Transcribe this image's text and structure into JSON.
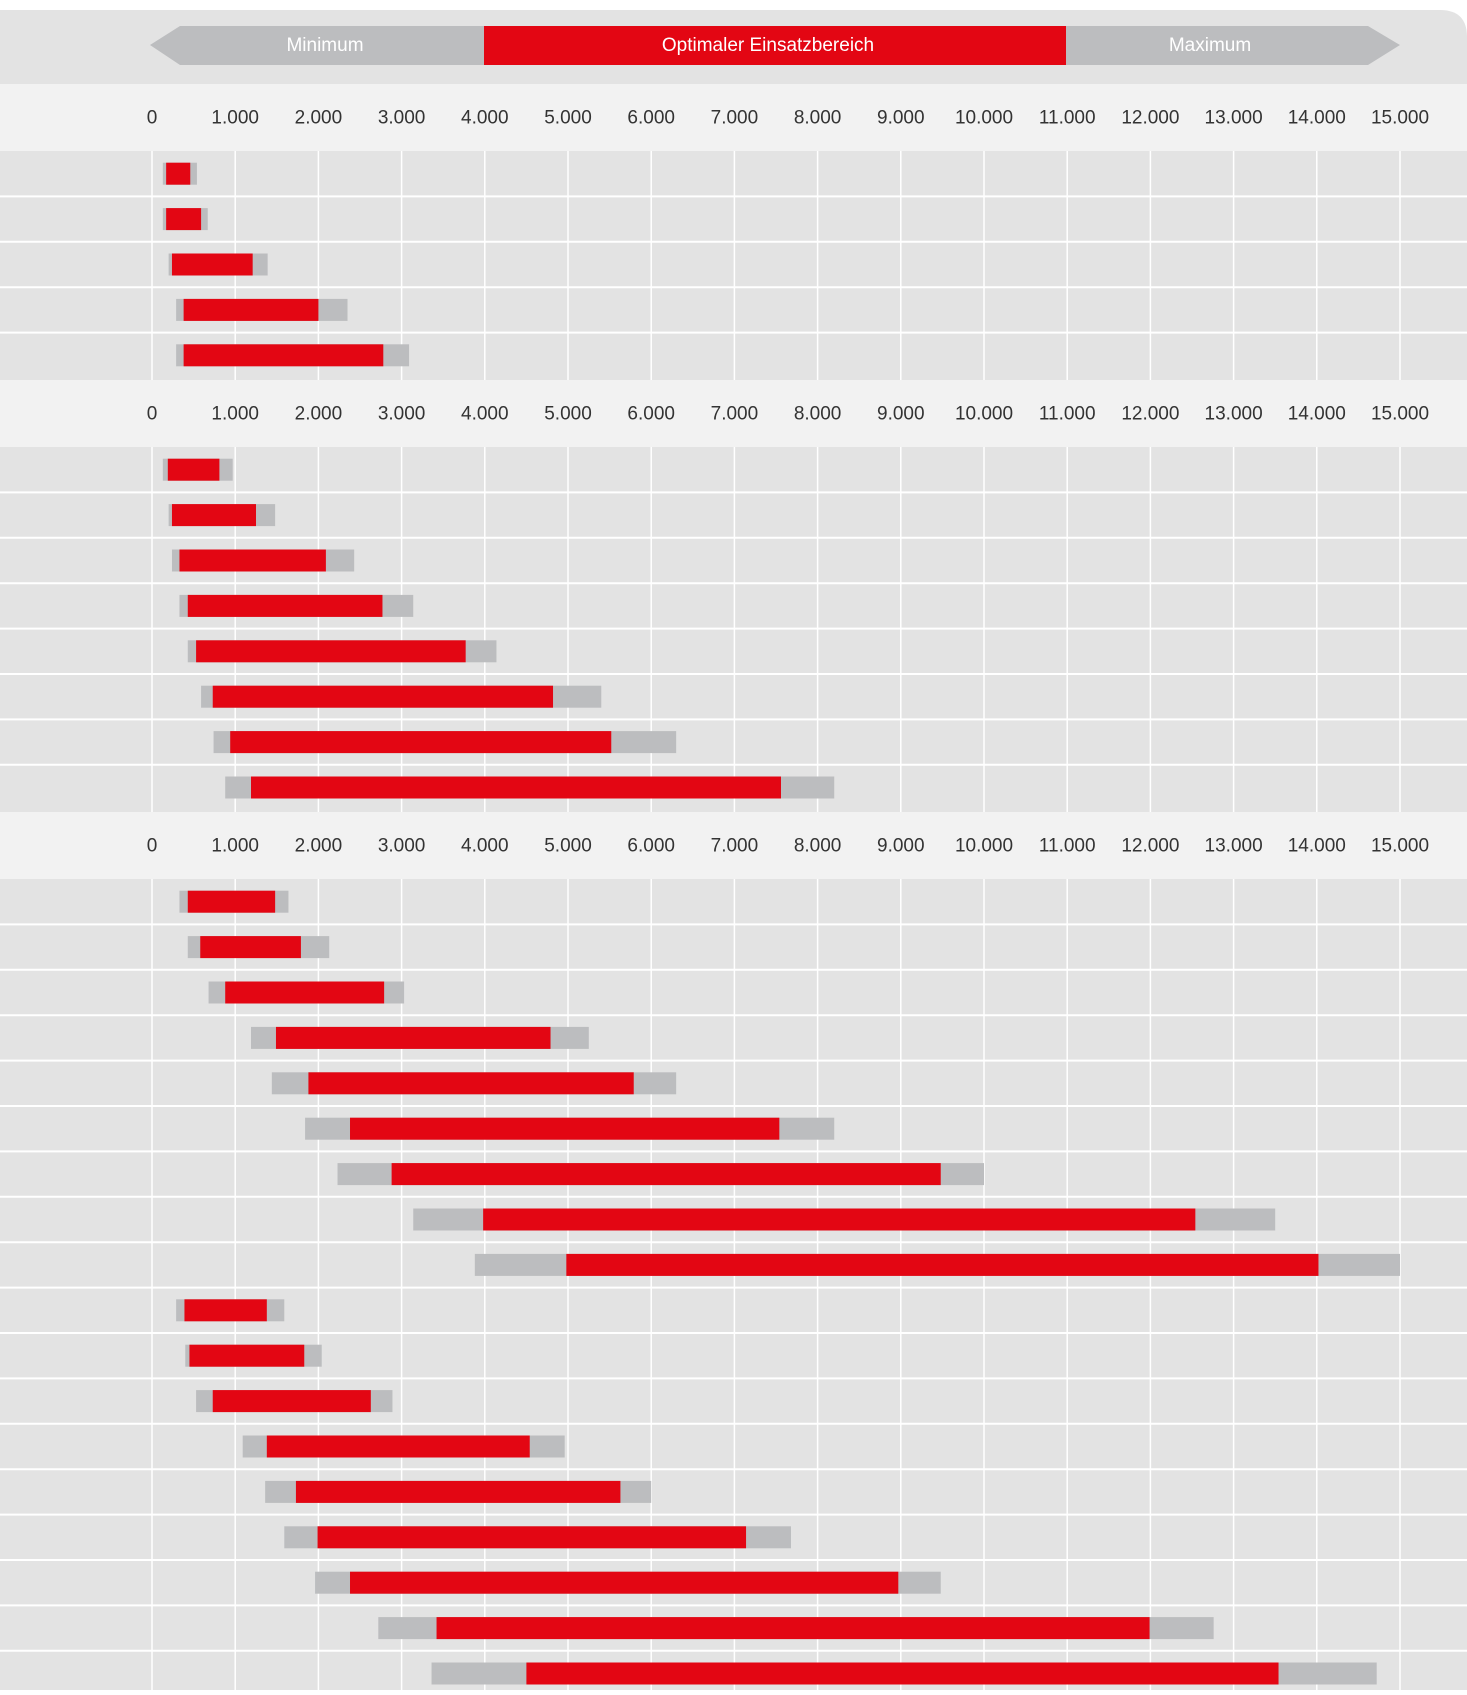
{
  "legend": {
    "minimum": "Minimum",
    "optimal": "Optimaler Einsatzbereich",
    "maximum": "Maximum"
  },
  "colors": {
    "optimal": "#e30613",
    "range": "#bcbdbf",
    "panel": "#e3e3e3",
    "axis_band": "#f2f2f2",
    "legend_gray": "#bcbdbf",
    "grid": "#ffffff",
    "tick_text": "#333333"
  },
  "chart_data": {
    "type": "bar",
    "subtype": "range-bars",
    "xlim": [
      0,
      15000
    ],
    "x_ticks": [
      0,
      1000,
      2000,
      3000,
      4000,
      5000,
      6000,
      7000,
      8000,
      9000,
      10000,
      11000,
      12000,
      13000,
      14000,
      15000
    ],
    "x_tick_labels": [
      "0",
      "1.000",
      "2.000",
      "3.000",
      "4.000",
      "5.000",
      "6.000",
      "7.000",
      "8.000",
      "9.000",
      "10.000",
      "11.000",
      "12.000",
      "13.000",
      "14.000",
      "15.000"
    ],
    "grid": true,
    "legend_position": "top",
    "groups": [
      {
        "bars": [
          {
            "min": 130,
            "opt_start": 170,
            "opt_end": 460,
            "max": 540
          },
          {
            "min": 130,
            "opt_start": 170,
            "opt_end": 590,
            "max": 670
          },
          {
            "min": 200,
            "opt_start": 240,
            "opt_end": 1210,
            "max": 1390
          },
          {
            "min": 290,
            "opt_start": 380,
            "opt_end": 2000,
            "max": 2350
          },
          {
            "min": 290,
            "opt_start": 380,
            "opt_end": 2780,
            "max": 3090
          }
        ]
      },
      {
        "bars": [
          {
            "min": 130,
            "opt_start": 190,
            "opt_end": 810,
            "max": 970
          },
          {
            "min": 200,
            "opt_start": 240,
            "opt_end": 1250,
            "max": 1480
          },
          {
            "min": 240,
            "opt_start": 330,
            "opt_end": 2090,
            "max": 2430
          },
          {
            "min": 330,
            "opt_start": 430,
            "opt_end": 2770,
            "max": 3140
          },
          {
            "min": 430,
            "opt_start": 530,
            "opt_end": 3770,
            "max": 4140
          },
          {
            "min": 590,
            "opt_start": 730,
            "opt_end": 4820,
            "max": 5400
          },
          {
            "min": 740,
            "opt_start": 940,
            "opt_end": 5520,
            "max": 6300
          },
          {
            "min": 880,
            "opt_start": 1190,
            "opt_end": 7560,
            "max": 8200
          }
        ]
      },
      {
        "bars": [
          {
            "min": 330,
            "opt_start": 430,
            "opt_end": 1480,
            "max": 1640
          },
          {
            "min": 430,
            "opt_start": 580,
            "opt_end": 1790,
            "max": 2130
          },
          {
            "min": 680,
            "opt_start": 880,
            "opt_end": 2790,
            "max": 3030
          },
          {
            "min": 1190,
            "opt_start": 1490,
            "opt_end": 4790,
            "max": 5250
          },
          {
            "min": 1440,
            "opt_start": 1880,
            "opt_end": 5790,
            "max": 6300
          },
          {
            "min": 1840,
            "opt_start": 2380,
            "opt_end": 7540,
            "max": 8200
          },
          {
            "min": 2230,
            "opt_start": 2880,
            "opt_end": 9480,
            "max": 10000
          },
          {
            "min": 3140,
            "opt_start": 3980,
            "opt_end": 12540,
            "max": 13500
          },
          {
            "min": 3880,
            "opt_start": 4980,
            "opt_end": 14020,
            "max": 15000
          },
          {
            "min": 290,
            "opt_start": 390,
            "opt_end": 1380,
            "max": 1590
          },
          {
            "min": 400,
            "opt_start": 450,
            "opt_end": 1830,
            "max": 2040
          },
          {
            "min": 530,
            "opt_start": 730,
            "opt_end": 2630,
            "max": 2890
          },
          {
            "min": 1090,
            "opt_start": 1380,
            "opt_end": 4540,
            "max": 4960
          },
          {
            "min": 1360,
            "opt_start": 1730,
            "opt_end": 5630,
            "max": 6000
          },
          {
            "min": 1590,
            "opt_start": 1990,
            "opt_end": 7140,
            "max": 7680
          },
          {
            "min": 1960,
            "opt_start": 2380,
            "opt_end": 8970,
            "max": 9480
          },
          {
            "min": 2720,
            "opt_start": 3420,
            "opt_end": 11990,
            "max": 12760
          },
          {
            "min": 3360,
            "opt_start": 4500,
            "opt_end": 13540,
            "max": 14720
          }
        ]
      }
    ]
  }
}
